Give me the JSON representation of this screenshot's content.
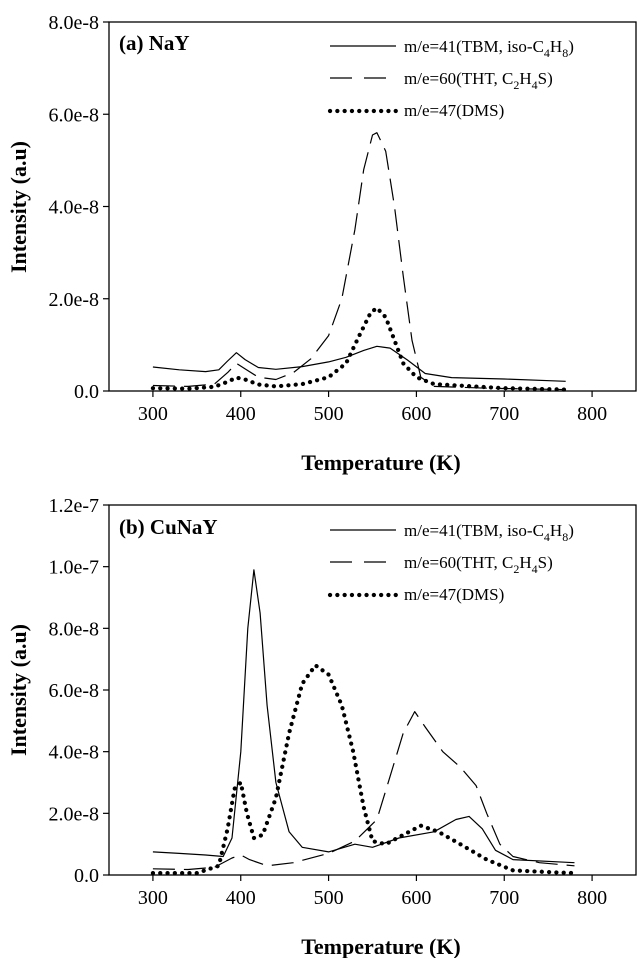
{
  "chart_data": [
    {
      "type": "line",
      "title": "(a) NaY",
      "xlabel": "Temperature (K)",
      "ylabel": "Intensity (a.u)",
      "xlim": [
        250,
        850
      ],
      "ylim": [
        0,
        8e-08
      ],
      "xticks": [
        "300",
        "400",
        "500",
        "600",
        "700",
        "800"
      ],
      "yticks": [
        "0.0",
        "2.0e-8",
        "4.0e-8",
        "6.0e-8",
        "8.0e-8"
      ],
      "legend_position": "top-right",
      "series": [
        {
          "name": "m/e=41(TBM, iso-C4H8)",
          "legend_parts": [
            "m/e=41(TBM, iso-C",
            "4",
            "H",
            "8",
            ")"
          ],
          "style": "solid",
          "points": [
            [
              300,
              5.2e-09
            ],
            [
              330,
              4.6e-09
            ],
            [
              360,
              4.2e-09
            ],
            [
              375,
              4.6e-09
            ],
            [
              385,
              6.5e-09
            ],
            [
              395,
              8.3e-09
            ],
            [
              405,
              6.8e-09
            ],
            [
              420,
              5.1e-09
            ],
            [
              440,
              4.7e-09
            ],
            [
              470,
              5.3e-09
            ],
            [
              500,
              6.3e-09
            ],
            [
              520,
              7.3e-09
            ],
            [
              540,
              8.8e-09
            ],
            [
              555,
              9.7e-09
            ],
            [
              570,
              9.3e-09
            ],
            [
              590,
              6.7e-09
            ],
            [
              610,
              3.8e-09
            ],
            [
              640,
              2.9e-09
            ],
            [
              700,
              2.6e-09
            ],
            [
              770,
              2.1e-09
            ]
          ]
        },
        {
          "name": "m/e=60(THT, C2H4S)",
          "legend_parts": [
            "m/e=60(THT, C",
            "2",
            "H",
            "4",
            "S)"
          ],
          "style": "dashed",
          "points": [
            [
              300,
              1.2e-09
            ],
            [
              340,
              1e-09
            ],
            [
              370,
              1.5e-09
            ],
            [
              385,
              4e-09
            ],
            [
              395,
              6e-09
            ],
            [
              405,
              4.8e-09
            ],
            [
              420,
              3e-09
            ],
            [
              440,
              2.5e-09
            ],
            [
              460,
              4e-09
            ],
            [
              480,
              7e-09
            ],
            [
              500,
              1.2e-08
            ],
            [
              515,
              2e-08
            ],
            [
              530,
              3.5e-08
            ],
            [
              540,
              4.8e-08
            ],
            [
              550,
              5.55e-08
            ],
            [
              555,
              5.6e-08
            ],
            [
              565,
              5.2e-08
            ],
            [
              575,
              4e-08
            ],
            [
              585,
              2.5e-08
            ],
            [
              595,
              1.1e-08
            ],
            [
              605,
              3e-09
            ],
            [
              620,
              1e-09
            ],
            [
              680,
              6e-10
            ],
            [
              770,
              3e-10
            ]
          ]
        },
        {
          "name": "m/e=47(DMS)",
          "legend_parts": [
            "m/e=47(DMS)",
            "",
            "",
            "",
            ""
          ],
          "style": "dotted",
          "points": [
            [
              300,
              6e-10
            ],
            [
              340,
              5e-10
            ],
            [
              370,
              9e-10
            ],
            [
              385,
              2e-09
            ],
            [
              395,
              2.9e-09
            ],
            [
              405,
              2.5e-09
            ],
            [
              420,
              1.4e-09
            ],
            [
              440,
              1e-09
            ],
            [
              470,
              1.5e-09
            ],
            [
              500,
              3e-09
            ],
            [
              520,
              6e-09
            ],
            [
              535,
              1.2e-08
            ],
            [
              548,
              1.7e-08
            ],
            [
              555,
              1.8e-08
            ],
            [
              565,
              1.6e-08
            ],
            [
              575,
              1.1e-08
            ],
            [
              585,
              6e-09
            ],
            [
              600,
              3e-09
            ],
            [
              620,
              1.5e-09
            ],
            [
              700,
              6e-10
            ],
            [
              770,
              3e-10
            ]
          ]
        }
      ]
    },
    {
      "type": "line",
      "title": "(b) CuNaY",
      "xlabel": "Temperature (K)",
      "ylabel": "Intensity (a.u)",
      "xlim": [
        250,
        850
      ],
      "ylim": [
        0,
        1.2e-07
      ],
      "xticks": [
        "300",
        "400",
        "500",
        "600",
        "700",
        "800"
      ],
      "yticks": [
        "0.0",
        "2.0e-8",
        "4.0e-8",
        "6.0e-8",
        "8.0e-8",
        "1.0e-7",
        "1.2e-7"
      ],
      "legend_position": "top-right",
      "series": [
        {
          "name": "m/e=41(TBM, iso-C4H8)",
          "legend_parts": [
            "m/e=41(TBM, iso-C",
            "4",
            "H",
            "8",
            ")"
          ],
          "style": "solid",
          "points": [
            [
              300,
              7.5e-09
            ],
            [
              330,
              7e-09
            ],
            [
              360,
              6.5e-09
            ],
            [
              380,
              6e-09
            ],
            [
              390,
              1.2e-08
            ],
            [
              400,
              4e-08
            ],
            [
              408,
              8e-08
            ],
            [
              415,
              9.9e-08
            ],
            [
              422,
              8.5e-08
            ],
            [
              430,
              5.5e-08
            ],
            [
              440,
              3e-08
            ],
            [
              455,
              1.4e-08
            ],
            [
              470,
              9e-09
            ],
            [
              500,
              7.5e-09
            ],
            [
              530,
              1e-08
            ],
            [
              550,
              9e-09
            ],
            [
              580,
              1.2e-08
            ],
            [
              620,
              1.4e-08
            ],
            [
              645,
              1.8e-08
            ],
            [
              660,
              1.9e-08
            ],
            [
              675,
              1.5e-08
            ],
            [
              690,
              8e-09
            ],
            [
              710,
              5e-09
            ],
            [
              780,
              4e-09
            ]
          ]
        },
        {
          "name": "m/e=60(THT, C2H4S)",
          "legend_parts": [
            "m/e=60(THT, C",
            "2",
            "H",
            "4",
            "S)"
          ],
          "style": "dashed",
          "points": [
            [
              300,
              2e-09
            ],
            [
              340,
              1.8e-09
            ],
            [
              370,
              2.5e-09
            ],
            [
              390,
              5.5e-09
            ],
            [
              400,
              6.5e-09
            ],
            [
              410,
              5e-09
            ],
            [
              430,
              3e-09
            ],
            [
              460,
              4e-09
            ],
            [
              500,
              7e-09
            ],
            [
              530,
              1.1e-08
            ],
            [
              555,
              1.8e-08
            ],
            [
              570,
              3.2e-08
            ],
            [
              585,
              4.6e-08
            ],
            [
              598,
              5.3e-08
            ],
            [
              610,
              4.8e-08
            ],
            [
              630,
              4e-08
            ],
            [
              650,
              3.5e-08
            ],
            [
              668,
              2.9e-08
            ],
            [
              680,
              2e-08
            ],
            [
              695,
              1e-08
            ],
            [
              710,
              6e-09
            ],
            [
              740,
              4e-09
            ],
            [
              780,
              3e-09
            ]
          ]
        },
        {
          "name": "m/e=47(DMS)",
          "legend_parts": [
            "m/e=47(DMS)",
            "",
            "",
            "",
            ""
          ],
          "style": "dotted",
          "points": [
            [
              300,
              6e-10
            ],
            [
              350,
              6e-10
            ],
            [
              375,
              3e-09
            ],
            [
              385,
              1.5e-08
            ],
            [
              393,
              2.8e-08
            ],
            [
              400,
              3e-08
            ],
            [
              407,
              2e-08
            ],
            [
              415,
              1.2e-08
            ],
            [
              425,
              1.3e-08
            ],
            [
              440,
              2.5e-08
            ],
            [
              455,
              4.6e-08
            ],
            [
              470,
              6.2e-08
            ],
            [
              485,
              6.8e-08
            ],
            [
              500,
              6.5e-08
            ],
            [
              515,
              5.5e-08
            ],
            [
              528,
              4e-08
            ],
            [
              540,
              2.2e-08
            ],
            [
              550,
              1.1e-08
            ],
            [
              565,
              1e-08
            ],
            [
              585,
              1.3e-08
            ],
            [
              605,
              1.6e-08
            ],
            [
              625,
              1.4e-08
            ],
            [
              650,
              1e-08
            ],
            [
              680,
              5e-09
            ],
            [
              710,
              1.5e-09
            ],
            [
              760,
              8e-10
            ],
            [
              780,
              6e-10
            ]
          ]
        }
      ]
    }
  ]
}
